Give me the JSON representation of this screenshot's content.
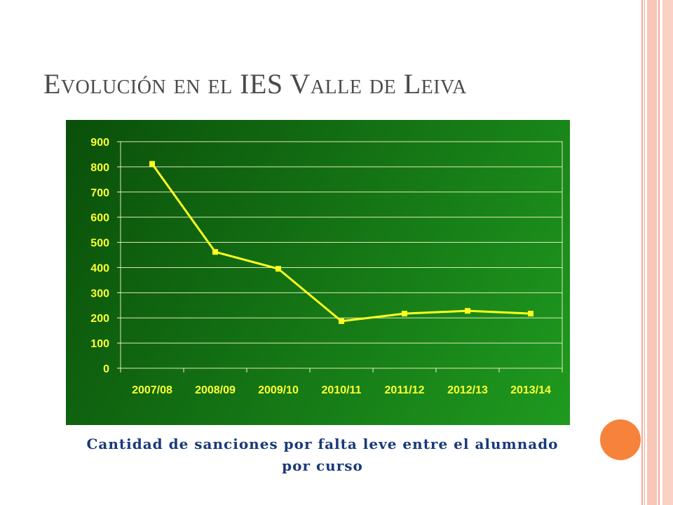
{
  "slide": {
    "title": "Evolución en el IES Valle de Leiva",
    "caption": "Cantidad de sanciones por falta leve entre el alumnado por curso"
  },
  "colors": {
    "panel_dark": "#0a4f0a",
    "panel_light": "#1f9a1f",
    "line": "#ffff1e",
    "axis_text": "#ffff33",
    "grid": "#f5f5c8",
    "caption": "#1a3a78",
    "title": "#4a4a4a",
    "accent_dot": "#f7823c",
    "stripes": "#f2a994"
  },
  "chart_data": {
    "type": "line",
    "categories": [
      "2007/08",
      "2008/09",
      "2009/10",
      "2010/11",
      "2011/12",
      "2012/13",
      "2013/14"
    ],
    "series": [
      {
        "values": [
          812,
          462,
          395,
          187,
          217,
          228,
          217
        ]
      }
    ],
    "ylim": [
      0,
      900
    ],
    "yticks": [
      0,
      100,
      200,
      300,
      400,
      500,
      600,
      700,
      800,
      900
    ],
    "grid": true,
    "legend": "none",
    "title": "",
    "xlabel": "",
    "ylabel": ""
  }
}
